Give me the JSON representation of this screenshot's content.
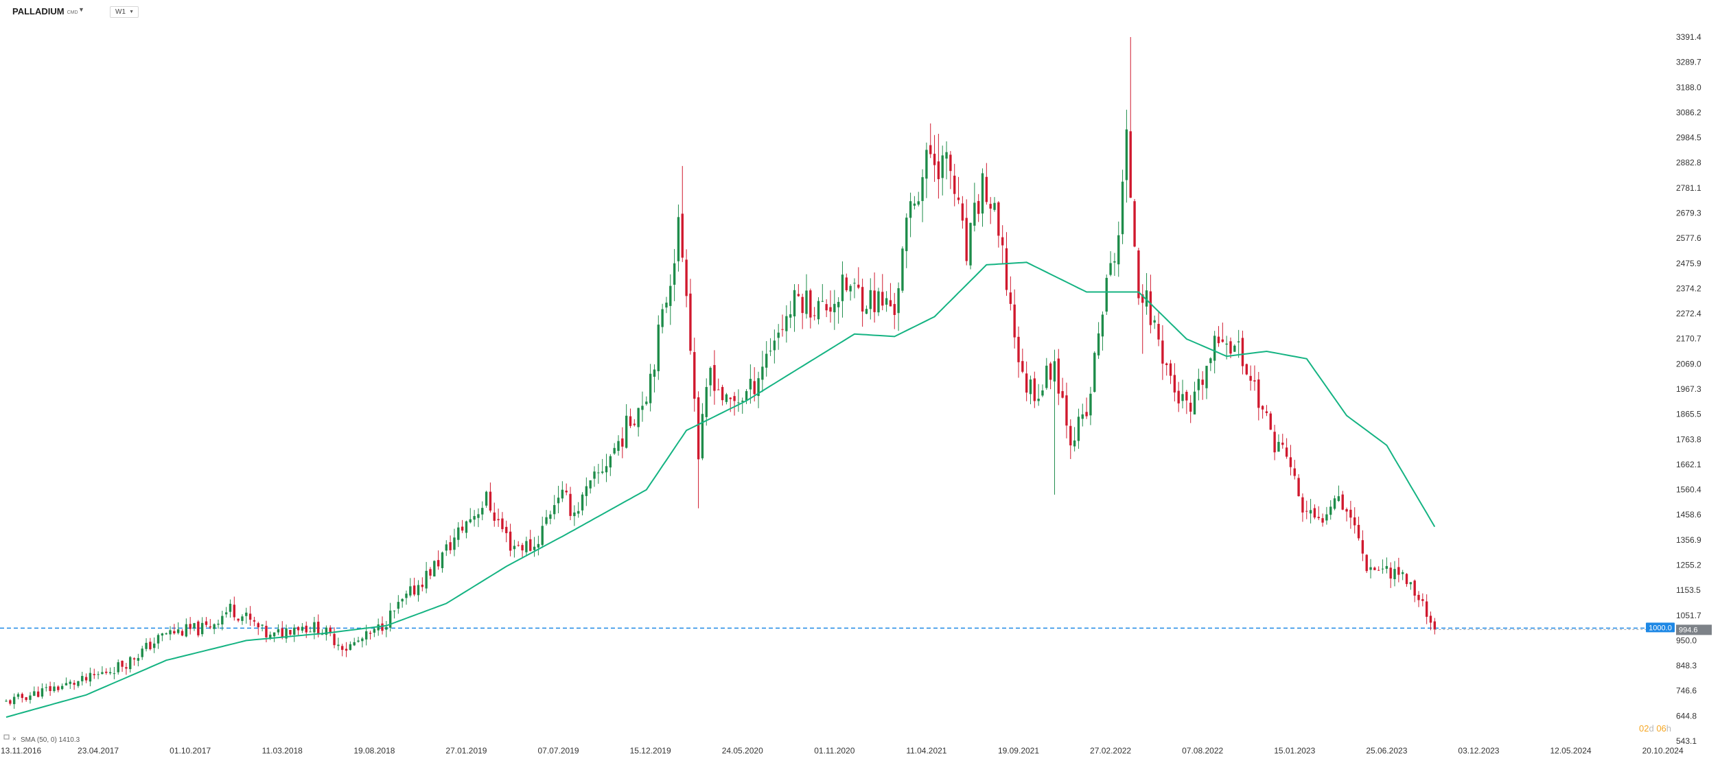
{
  "header": {
    "symbol": "PALLADIUM",
    "symbol_suffix": "CMD",
    "timeframe": "W1"
  },
  "indicator": {
    "label": "SMA (50, 0) 1410.3",
    "color": "#14b382"
  },
  "countdown": {
    "value_d": "02",
    "unit_d": "d",
    "value_h": "06",
    "unit_h": "h",
    "color": "#f5a623"
  },
  "price_labels": {
    "horizontal_line": "1000.0",
    "horizontal_line_value": 1000.0,
    "horizontal_line_color": "#1e88e5",
    "current_price": "994.6",
    "current_price_value": 994.6
  },
  "colors": {
    "up": "#1e8c4a",
    "down": "#d0192e",
    "sma": "#14b382",
    "background": "#ffffff"
  },
  "chart_data": {
    "type": "candlestick",
    "title": "",
    "xlabel": "",
    "ylabel": "",
    "ylim": [
      543.1,
      3391.4
    ],
    "y_ticks": [
      "3391.4",
      "3289.7",
      "3188.0",
      "3086.2",
      "2984.5",
      "2882.8",
      "2781.1",
      "2679.3",
      "2577.6",
      "2475.9",
      "2374.2",
      "2272.4",
      "2170.7",
      "2069.0",
      "1967.3",
      "1865.5",
      "1763.8",
      "1662.1",
      "1560.4",
      "1458.6",
      "1356.9",
      "1255.2",
      "1153.5",
      "1051.7",
      "950.0",
      "848.3",
      "746.6",
      "644.8",
      "543.1"
    ],
    "x_ticks": [
      "13.11.2016",
      "23.04.2017",
      "01.10.2017",
      "11.03.2018",
      "19.08.2018",
      "27.01.2019",
      "07.07.2019",
      "15.12.2019",
      "24.05.2020",
      "01.11.2020",
      "11.04.2021",
      "19.09.2021",
      "27.02.2022",
      "07.08.2022",
      "15.01.2023",
      "25.06.2023",
      "03.12.2023",
      "12.05.2024",
      "20.10.2024"
    ],
    "x_tick_weeks": [
      0,
      23,
      46,
      69,
      92,
      115,
      138,
      161,
      184,
      207,
      230,
      253,
      276,
      299,
      322,
      345,
      368,
      391,
      414
    ],
    "price_path": [
      {
        "week": 0,
        "close": 700
      },
      {
        "week": 10,
        "close": 750
      },
      {
        "week": 20,
        "close": 790
      },
      {
        "week": 30,
        "close": 860
      },
      {
        "week": 40,
        "close": 980
      },
      {
        "week": 50,
        "close": 1000
      },
      {
        "week": 56,
        "close": 1080
      },
      {
        "week": 60,
        "close": 1040
      },
      {
        "week": 66,
        "close": 960
      },
      {
        "week": 72,
        "close": 1010
      },
      {
        "week": 78,
        "close": 1000
      },
      {
        "week": 85,
        "close": 920
      },
      {
        "week": 92,
        "close": 980
      },
      {
        "week": 100,
        "close": 1120
      },
      {
        "week": 108,
        "close": 1270
      },
      {
        "week": 115,
        "close": 1430
      },
      {
        "week": 120,
        "close": 1520
      },
      {
        "week": 126,
        "close": 1340
      },
      {
        "week": 132,
        "close": 1330
      },
      {
        "week": 138,
        "close": 1550
      },
      {
        "week": 142,
        "close": 1470
      },
      {
        "week": 148,
        "close": 1620
      },
      {
        "week": 154,
        "close": 1780
      },
      {
        "week": 160,
        "close": 1960
      },
      {
        "week": 164,
        "close": 2250
      },
      {
        "week": 168,
        "close": 2620
      },
      {
        "week": 170,
        "close": 2400
      },
      {
        "week": 173,
        "close": 1700
      },
      {
        "week": 176,
        "close": 2050
      },
      {
        "week": 180,
        "close": 1900
      },
      {
        "week": 186,
        "close": 1960
      },
      {
        "week": 192,
        "close": 2180
      },
      {
        "week": 198,
        "close": 2340
      },
      {
        "week": 204,
        "close": 2290
      },
      {
        "week": 210,
        "close": 2380
      },
      {
        "week": 216,
        "close": 2330
      },
      {
        "week": 222,
        "close": 2300
      },
      {
        "week": 226,
        "close": 2700
      },
      {
        "week": 231,
        "close": 2920
      },
      {
        "week": 236,
        "close": 2850
      },
      {
        "week": 240,
        "close": 2500
      },
      {
        "week": 244,
        "close": 2800
      },
      {
        "week": 247,
        "close": 2650
      },
      {
        "week": 250,
        "close": 2400
      },
      {
        "week": 254,
        "close": 2000
      },
      {
        "week": 258,
        "close": 1960
      },
      {
        "week": 262,
        "close": 2080
      },
      {
        "week": 266,
        "close": 1780
      },
      {
        "week": 270,
        "close": 1850
      },
      {
        "week": 274,
        "close": 2300
      },
      {
        "week": 278,
        "close": 2600
      },
      {
        "week": 280,
        "close": 2950
      },
      {
        "week": 283,
        "close": 2400
      },
      {
        "week": 287,
        "close": 2220
      },
      {
        "week": 292,
        "close": 1960
      },
      {
        "week": 296,
        "close": 1860
      },
      {
        "week": 300,
        "close": 2050
      },
      {
        "week": 304,
        "close": 2200
      },
      {
        "week": 308,
        "close": 2120
      },
      {
        "week": 312,
        "close": 1980
      },
      {
        "week": 316,
        "close": 1780
      },
      {
        "week": 320,
        "close": 1700
      },
      {
        "week": 324,
        "close": 1480
      },
      {
        "week": 328,
        "close": 1420
      },
      {
        "week": 332,
        "close": 1560
      },
      {
        "week": 336,
        "close": 1460
      },
      {
        "week": 340,
        "close": 1260
      },
      {
        "week": 344,
        "close": 1240
      },
      {
        "week": 348,
        "close": 1230
      },
      {
        "week": 352,
        "close": 1150
      },
      {
        "week": 355,
        "close": 1070
      },
      {
        "week": 357,
        "close": 994.6
      }
    ],
    "spikes": [
      {
        "week": 169,
        "high": 2870
      },
      {
        "week": 173,
        "low": 1485
      },
      {
        "week": 233,
        "high": 3000
      },
      {
        "week": 262,
        "low": 1540
      },
      {
        "week": 281,
        "high": 3391.4
      },
      {
        "week": 284,
        "low": 2110
      }
    ],
    "sma": [
      {
        "week": 0,
        "value": 640
      },
      {
        "week": 20,
        "value": 730
      },
      {
        "week": 40,
        "value": 870
      },
      {
        "week": 60,
        "value": 950
      },
      {
        "week": 80,
        "value": 980
      },
      {
        "week": 95,
        "value": 1010
      },
      {
        "week": 110,
        "value": 1100
      },
      {
        "week": 125,
        "value": 1250
      },
      {
        "week": 140,
        "value": 1380
      },
      {
        "week": 160,
        "value": 1560
      },
      {
        "week": 170,
        "value": 1800
      },
      {
        "week": 185,
        "value": 1920
      },
      {
        "week": 200,
        "value": 2070
      },
      {
        "week": 212,
        "value": 2190
      },
      {
        "week": 222,
        "value": 2180
      },
      {
        "week": 232,
        "value": 2260
      },
      {
        "week": 245,
        "value": 2470
      },
      {
        "week": 255,
        "value": 2480
      },
      {
        "week": 270,
        "value": 2360
      },
      {
        "week": 283,
        "value": 2360
      },
      {
        "week": 295,
        "value": 2170
      },
      {
        "week": 305,
        "value": 2100
      },
      {
        "week": 315,
        "value": 2120
      },
      {
        "week": 325,
        "value": 2090
      },
      {
        "week": 335,
        "value": 1860
      },
      {
        "week": 345,
        "value": 1740
      },
      {
        "week": 357,
        "value": 1410.3
      }
    ],
    "seed": 11
  }
}
